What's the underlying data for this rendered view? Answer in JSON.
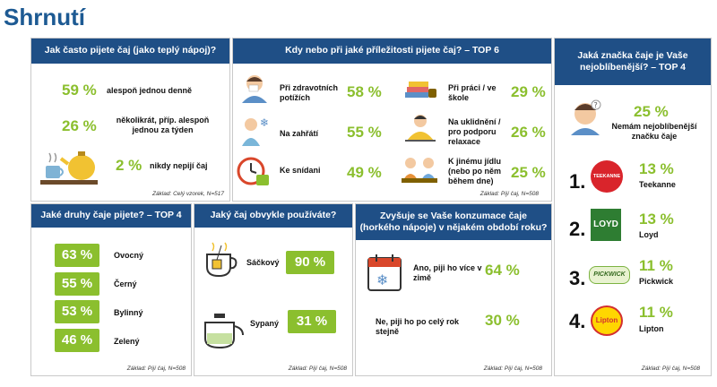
{
  "page_title": "Shrnutí",
  "frequency": {
    "header": "Jak často pijete čaj (jako teplý nápoj)?",
    "rows": [
      {
        "pct": "59 %",
        "label": "alespoň jednou denně"
      },
      {
        "pct": "26 %",
        "label": "několikrát, příp. alespoň jednou za týden"
      },
      {
        "pct": "2 %",
        "label": "nikdy nepijí čaj"
      }
    ],
    "base": "Základ: Celý vzorek, N=517"
  },
  "occasions": {
    "header": "Kdy nebo při jaké příležitosti pijete čaj? – TOP 6",
    "left": [
      {
        "label": "Při zdravotních potížích",
        "pct": "58 %",
        "icon": "sick-person-icon"
      },
      {
        "label": "Na zahřátí",
        "pct": "55 %",
        "icon": "cold-person-icon"
      },
      {
        "label": "Ke snídani",
        "pct": "49 %",
        "icon": "clock-cup-icon"
      }
    ],
    "right": [
      {
        "label": "Při práci / ve škole",
        "pct": "29 %",
        "icon": "books-cup-icon"
      },
      {
        "label": "Na uklidnění / pro podporu relaxace",
        "pct": "26 %",
        "icon": "meditation-icon"
      },
      {
        "label": "K jinému jídlu (nebo po něm během dne)",
        "pct": "25 %",
        "icon": "dining-people-icon"
      }
    ],
    "base": "Základ: Pijí čaj, N=508"
  },
  "favorite": {
    "header": "Jaká značka čaje je Vaše nejoblíbenější? – TOP 4",
    "none_pct": "25 %",
    "none_label": "Nemám nejoblíbenější značku čaje",
    "brands": [
      {
        "rank": "1.",
        "pct": "13 %",
        "name": "Teekanne",
        "logo": "TEEKANNE"
      },
      {
        "rank": "2.",
        "pct": "13 %",
        "name": "Loyd",
        "logo": "LOYD"
      },
      {
        "rank": "3.",
        "pct": "11 %",
        "name": "Pickwick",
        "logo": "PICKWICK"
      },
      {
        "rank": "4.",
        "pct": "11 %",
        "name": "Lipton",
        "logo": "Lipton"
      }
    ],
    "base": "Základ: Pijí čaj, N=508"
  },
  "kinds": {
    "header": "Jaké druhy čaje pijete? – TOP 4",
    "rows": [
      {
        "pct": "63 %",
        "label": "Ovocný"
      },
      {
        "pct": "55 %",
        "label": "Černý"
      },
      {
        "pct": "53 %",
        "label": "Bylinný"
      },
      {
        "pct": "46 %",
        "label": "Zelený"
      }
    ],
    "base": "Základ: Pijí čaj, N=508"
  },
  "format": {
    "header": "Jaký čaj obvykle používáte?",
    "rows": [
      {
        "label": "Sáčkový",
        "pct": "90 %"
      },
      {
        "label": "Sypaný",
        "pct": "31 %"
      }
    ],
    "base": "Základ: Pijí čaj, N=508"
  },
  "season": {
    "header": "Zvyšuje se Vaše konzumace čaje (horkého nápoje) v nějakém období roku?",
    "rows": [
      {
        "label": "Ano, piji ho více v zimě",
        "pct": "64 %"
      },
      {
        "label": "Ne, piji ho po celý rok stejně",
        "pct": "30 %"
      }
    ],
    "base": "Základ: Pijí čaj, N=508"
  },
  "colors": {
    "header": "#1f4f86",
    "accent": "#8bbf2e",
    "title": "#1d5a93"
  }
}
